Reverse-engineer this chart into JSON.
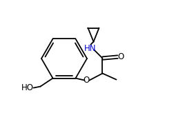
{
  "background": "#ffffff",
  "line_color": "#000000",
  "label_HN": "HN",
  "label_O_ketone": "O",
  "label_O_ether": "O",
  "label_HO": "HO",
  "figsize": [
    2.68,
    1.67
  ],
  "dpi": 100,
  "lw": 1.3,
  "hn_color": "#0000cc",
  "black": "#000000"
}
